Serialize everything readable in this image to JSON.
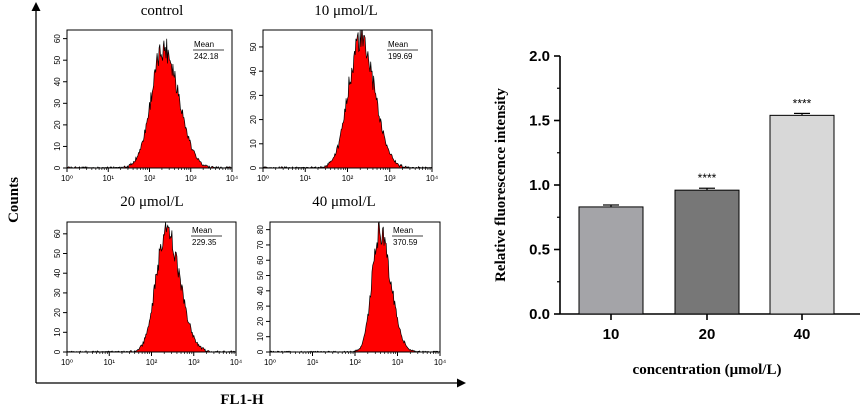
{
  "figure": {
    "left_ylabel": "Counts",
    "left_xlabel": "FL1-H",
    "mean_label": "Mean"
  },
  "chart_data": [
    {
      "type": "histogram",
      "title": "control",
      "mean_value": "242.18",
      "x_scale": "log",
      "x_ticks": [
        "10⁰",
        "10¹",
        "10²",
        "10³",
        "10⁴"
      ],
      "y_ticks": [
        0,
        10,
        20,
        30,
        40,
        50,
        60
      ],
      "ylim": [
        0,
        64
      ],
      "peak": {
        "log_center": 2.35,
        "peak_count": 56,
        "width": 0.3,
        "spread_right": 0.36
      }
    },
    {
      "type": "histogram",
      "title": "10 μmol/L",
      "mean_value": "199.69",
      "x_scale": "log",
      "x_ticks": [
        "10⁰",
        "10¹",
        "10²",
        "10³",
        "10⁴"
      ],
      "y_ticks": [
        0,
        10,
        20,
        30,
        40,
        50
      ],
      "ylim": [
        0,
        57
      ],
      "peak": {
        "log_center": 2.3,
        "peak_count": 53,
        "width": 0.28,
        "spread_right": 0.34
      }
    },
    {
      "type": "histogram",
      "title": "20 μmol/L",
      "mean_value": "229.35",
      "x_scale": "log",
      "x_ticks": [
        "10⁰",
        "10¹",
        "10²",
        "10³",
        "10⁴"
      ],
      "y_ticks": [
        0,
        10,
        20,
        30,
        40,
        50,
        60
      ],
      "ylim": [
        0,
        66
      ],
      "peak": {
        "log_center": 2.35,
        "peak_count": 62,
        "width": 0.24,
        "spread_right": 0.32
      }
    },
    {
      "type": "histogram",
      "title": "40 μmol/L",
      "mean_value": "370.59",
      "x_scale": "log",
      "x_ticks": [
        "10⁰",
        "10¹",
        "10²",
        "10³",
        "10⁴"
      ],
      "y_ticks": [
        0,
        10,
        20,
        30,
        40,
        50,
        60,
        70,
        80
      ],
      "ylim": [
        0,
        85
      ],
      "peak": {
        "log_center": 2.58,
        "peak_count": 78,
        "width": 0.18,
        "spread_right": 0.26
      }
    },
    {
      "type": "bar",
      "categories": [
        "10",
        "20",
        "40"
      ],
      "values": [
        0.83,
        0.96,
        1.54
      ],
      "errors": [
        0.015,
        0.015,
        0.015
      ],
      "significance": [
        "",
        "****",
        "****"
      ],
      "bar_colors": [
        "#a4a4a8",
        "#777777",
        "#d8d8d8"
      ],
      "ylabel": "Relative fluorescence intensity",
      "xlabel": "concentration (μmol/L)",
      "ylim": [
        0,
        2.0
      ],
      "y_ticks": [
        "0.0",
        "0.5",
        "1.0",
        "1.5",
        "2.0"
      ]
    }
  ],
  "colors": {
    "histogram_fill": "#ff0000",
    "axis": "#000000"
  }
}
